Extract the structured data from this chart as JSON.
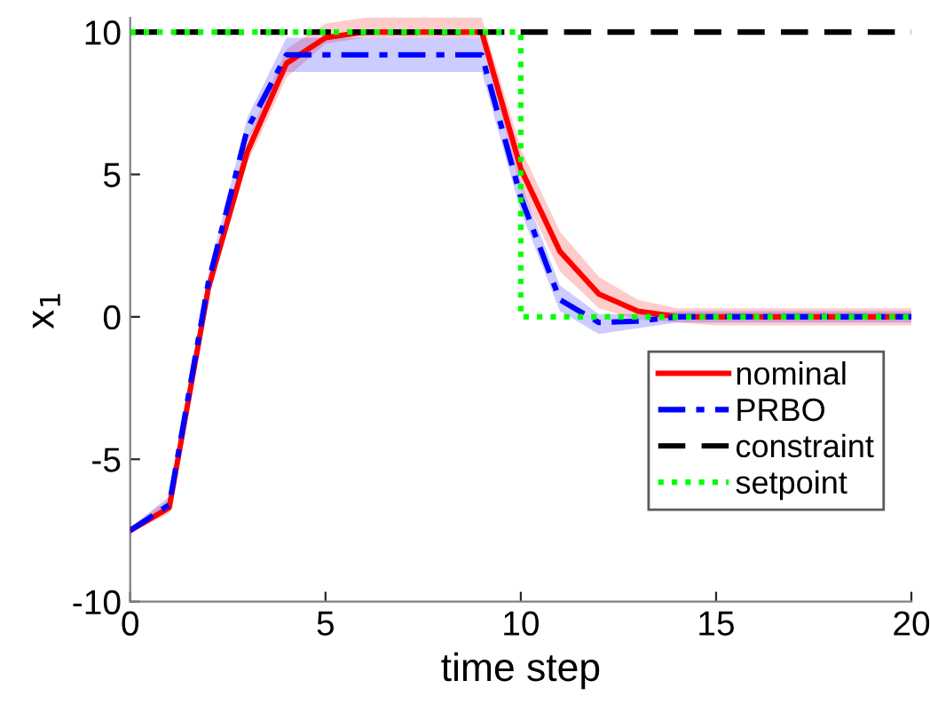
{
  "chart_data": {
    "type": "line",
    "xlabel": "time step",
    "ylabel": "x$_{1}$",
    "x": [
      0,
      1,
      2,
      3,
      4,
      5,
      6,
      7,
      8,
      9,
      10,
      11,
      12,
      13,
      14,
      15,
      16,
      17,
      18,
      19,
      20
    ],
    "xlim": [
      0,
      20
    ],
    "xticks": [
      0,
      5,
      10,
      15,
      20
    ],
    "ylim": [
      -10,
      10.5
    ],
    "yticks": [
      -10,
      -5,
      0,
      5,
      10
    ],
    "grid": false,
    "legend": "bottom right",
    "series": [
      {
        "name": "nominal",
        "color": "#ff0000",
        "line_style": "solid",
        "values": [
          -7.5,
          -6.7,
          1.0,
          5.8,
          8.9,
          9.8,
          10,
          10,
          10,
          10,
          5.2,
          2.3,
          0.8,
          0.2,
          0,
          0,
          0,
          0,
          0,
          0,
          0
        ],
        "lower": [
          -7.6,
          -6.9,
          0.7,
          5.4,
          8.4,
          9.6,
          9.8,
          9.8,
          9.8,
          9.8,
          4.5,
          1.6,
          0.3,
          -0.1,
          -0.2,
          -0.3,
          -0.3,
          -0.3,
          -0.3,
          -0.3,
          -0.3
        ],
        "upper": [
          -7.4,
          -6.4,
          1.3,
          6.2,
          9.4,
          10.3,
          10.5,
          10.5,
          10.5,
          10.5,
          5.9,
          3.0,
          1.4,
          0.6,
          0.3,
          0.3,
          0.3,
          0.3,
          0.3,
          0.3,
          0.3
        ]
      },
      {
        "name": "PRBO",
        "color": "#0000ff",
        "line_style": "dashdot",
        "values": [
          -7.5,
          -6.6,
          1.2,
          6.6,
          9.2,
          9.2,
          9.2,
          9.2,
          9.2,
          9.2,
          4.2,
          0.6,
          -0.2,
          -0.15,
          0,
          0,
          0,
          0,
          0,
          0,
          0
        ],
        "lower": [
          -7.6,
          -6.8,
          0.9,
          6.2,
          8.6,
          8.6,
          8.6,
          8.6,
          8.6,
          8.6,
          3.7,
          0.2,
          -0.6,
          -0.4,
          -0.2,
          -0.2,
          -0.2,
          -0.2,
          -0.2,
          -0.2,
          -0.2
        ],
        "upper": [
          -7.4,
          -6.3,
          1.5,
          7.0,
          9.8,
          9.8,
          9.8,
          9.8,
          9.8,
          9.8,
          4.7,
          1.1,
          0.1,
          0.1,
          0.2,
          0.2,
          0.2,
          0.2,
          0.2,
          0.2,
          0.2
        ]
      },
      {
        "name": "constraint",
        "color": "#000000",
        "line_style": "dashed",
        "x": [
          0,
          20
        ],
        "values": [
          10,
          10
        ]
      },
      {
        "name": "setpoint",
        "color": "#00ff00",
        "line_style": "dotted",
        "type": "step",
        "x": [
          0,
          10,
          20
        ],
        "values": [
          10,
          0,
          0
        ]
      }
    ]
  }
}
